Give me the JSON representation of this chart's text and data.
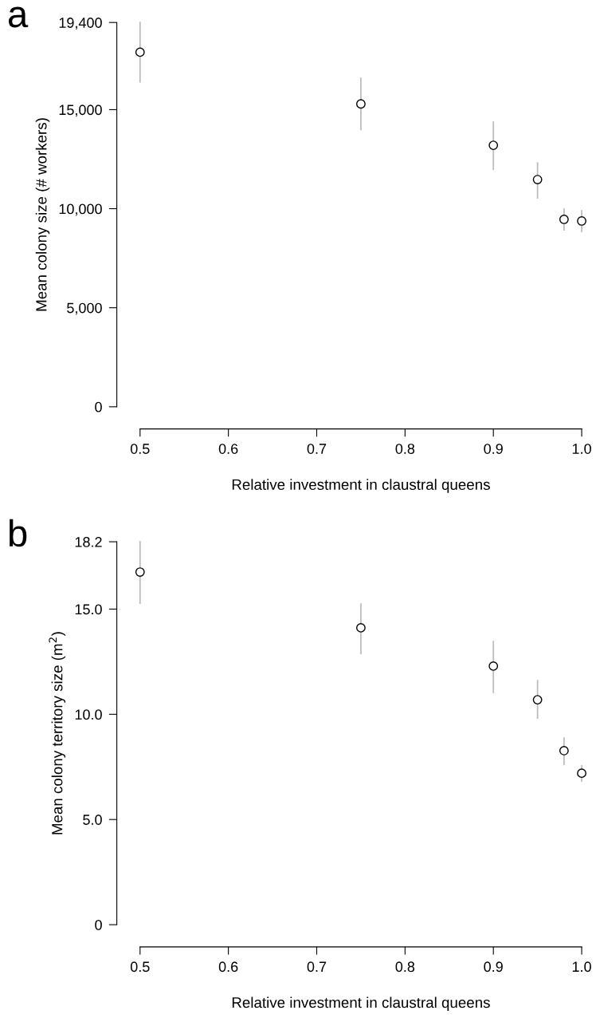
{
  "chart_data": [
    {
      "type": "scatter",
      "xlabel": "Relative investment in claustral queens",
      "ylabel": "Mean colony size (# workers)",
      "annotations": [
        "a"
      ],
      "x": [
        0.5,
        0.75,
        0.9,
        0.95,
        0.98,
        1.0
      ],
      "series": [
        {
          "color": "#000000",
          "values": [
            17900,
            15290,
            13200,
            11470,
            9460,
            9380
          ],
          "errors": [
            [
              16400,
              19400
            ],
            [
              14000,
              16580
            ],
            [
              11990,
              14370
            ],
            [
              10540,
              12310
            ],
            [
              8930,
              9980
            ],
            [
              8850,
              9900
            ]
          ]
        }
      ],
      "xlim": [
        0.5,
        1.0
      ],
      "xticks": [
        {
          "value": 0.5,
          "label": "0.5"
        },
        {
          "value": 0.6,
          "label": "0.6"
        },
        {
          "value": 0.7,
          "label": "0.7"
        },
        {
          "value": 0.8,
          "label": "0.8"
        },
        {
          "value": 0.9,
          "label": "0.9"
        },
        {
          "value": 1.0,
          "label": "1.0"
        }
      ],
      "ylim": [
        0,
        19400
      ],
      "yticks": [
        0,
        {
          "value": 5000,
          "label": "5,000"
        },
        {
          "value": 10000,
          "label": "10,000"
        },
        {
          "value": 15000,
          "label": "15,000"
        },
        {
          "value": 19400,
          "label": "19,400"
        }
      ],
      "grid": false,
      "legend": false,
      "marker": "circle"
    },
    {
      "type": "scatter",
      "xlabel": "Relative investment in claustral queens",
      "ylabel": "Mean colony territory size (m$^{2}$)",
      "annotations": [
        "b"
      ],
      "x": [
        0.5,
        0.75,
        0.9,
        0.95,
        0.98,
        1.0
      ],
      "series": [
        {
          "color": "#000000",
          "values": [
            16.76,
            14.11,
            12.29,
            10.69,
            8.27,
            7.2
          ],
          "errors": [
            [
              15.28,
              18.2
            ],
            [
              12.89,
              15.24
            ],
            [
              11.04,
              13.46
            ],
            [
              9.82,
              11.6
            ],
            [
              7.62,
              8.87
            ],
            [
              6.83,
              7.55
            ]
          ]
        }
      ],
      "xlim": [
        0.5,
        1.0
      ],
      "xticks": [
        {
          "value": 0.5,
          "label": "0.5"
        },
        {
          "value": 0.6,
          "label": "0.6"
        },
        {
          "value": 0.7,
          "label": "0.7"
        },
        {
          "value": 0.8,
          "label": "0.8"
        },
        {
          "value": 0.9,
          "label": "0.9"
        },
        {
          "value": 1.0,
          "label": "1.0"
        }
      ],
      "ylim": [
        0,
        18.2
      ],
      "yticks": [
        0,
        {
          "value": 5,
          "label": "5.0"
        },
        {
          "value": 10,
          "label": "10.0"
        },
        {
          "value": 15,
          "label": "15.0"
        },
        {
          "value": 18.2,
          "label": "18.2"
        }
      ],
      "grid": false,
      "legend": false,
      "marker": "circle"
    }
  ]
}
